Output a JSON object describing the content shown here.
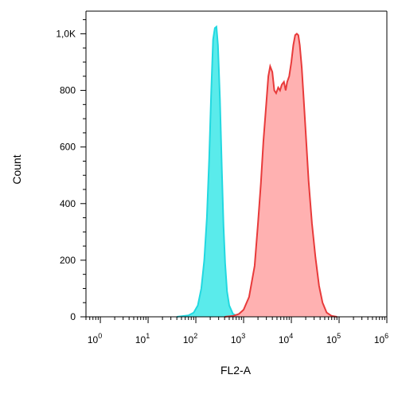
{
  "chart_data": {
    "type": "area",
    "title": "",
    "xlabel": "FL2-A",
    "ylabel": "Count",
    "x_scale": "log",
    "xlim": [
      0.5,
      1000000
    ],
    "ylim": [
      0,
      1080
    ],
    "x_ticks": [
      {
        "value": 1,
        "base": "10",
        "exp": "0"
      },
      {
        "value": 10,
        "base": "10",
        "exp": "1"
      },
      {
        "value": 100,
        "base": "10",
        "exp": "2"
      },
      {
        "value": 1000,
        "base": "10",
        "exp": "3"
      },
      {
        "value": 10000,
        "base": "10",
        "exp": "4"
      },
      {
        "value": 100000,
        "base": "10",
        "exp": "5"
      },
      {
        "value": 1000000,
        "base": "10",
        "exp": "6"
      }
    ],
    "y_ticks": [
      {
        "value": 0,
        "label": "0"
      },
      {
        "value": 200,
        "label": "200"
      },
      {
        "value": 400,
        "label": "400"
      },
      {
        "value": 600,
        "label": "600"
      },
      {
        "value": 800,
        "label": "800"
      },
      {
        "value": 1000,
        "label": "1,0K"
      }
    ],
    "grid": false,
    "series": [
      {
        "color": "#3de8e8",
        "line_color": "#22d8e0",
        "points": [
          [
            40,
            0
          ],
          [
            70,
            5
          ],
          [
            90,
            15
          ],
          [
            110,
            40
          ],
          [
            130,
            100
          ],
          [
            150,
            200
          ],
          [
            170,
            350
          ],
          [
            190,
            560
          ],
          [
            210,
            800
          ],
          [
            230,
            980
          ],
          [
            250,
            1020
          ],
          [
            270,
            1025
          ],
          [
            290,
            960
          ],
          [
            320,
            770
          ],
          [
            350,
            520
          ],
          [
            380,
            320
          ],
          [
            410,
            190
          ],
          [
            450,
            90
          ],
          [
            500,
            40
          ],
          [
            600,
            10
          ],
          [
            800,
            0
          ]
        ]
      },
      {
        "color": "#ff9e9e",
        "line_color": "#e83a3a",
        "points": [
          [
            400,
            0
          ],
          [
            600,
            3
          ],
          [
            800,
            10
          ],
          [
            1000,
            25
          ],
          [
            1300,
            70
          ],
          [
            1700,
            180
          ],
          [
            2000,
            330
          ],
          [
            2300,
            470
          ],
          [
            2600,
            620
          ],
          [
            3000,
            760
          ],
          [
            3300,
            850
          ],
          [
            3600,
            885
          ],
          [
            4000,
            865
          ],
          [
            4400,
            800
          ],
          [
            4800,
            790
          ],
          [
            5300,
            810
          ],
          [
            5800,
            800
          ],
          [
            6300,
            820
          ],
          [
            7000,
            830
          ],
          [
            7600,
            800
          ],
          [
            8200,
            830
          ],
          [
            9000,
            850
          ],
          [
            10000,
            900
          ],
          [
            11000,
            960
          ],
          [
            12000,
            995
          ],
          [
            13000,
            1000
          ],
          [
            14000,
            995
          ],
          [
            15000,
            960
          ],
          [
            16500,
            880
          ],
          [
            18000,
            780
          ],
          [
            20000,
            650
          ],
          [
            23000,
            480
          ],
          [
            27000,
            330
          ],
          [
            32000,
            210
          ],
          [
            38000,
            110
          ],
          [
            45000,
            50
          ],
          [
            55000,
            15
          ],
          [
            70000,
            3
          ],
          [
            90000,
            0
          ]
        ]
      }
    ]
  }
}
